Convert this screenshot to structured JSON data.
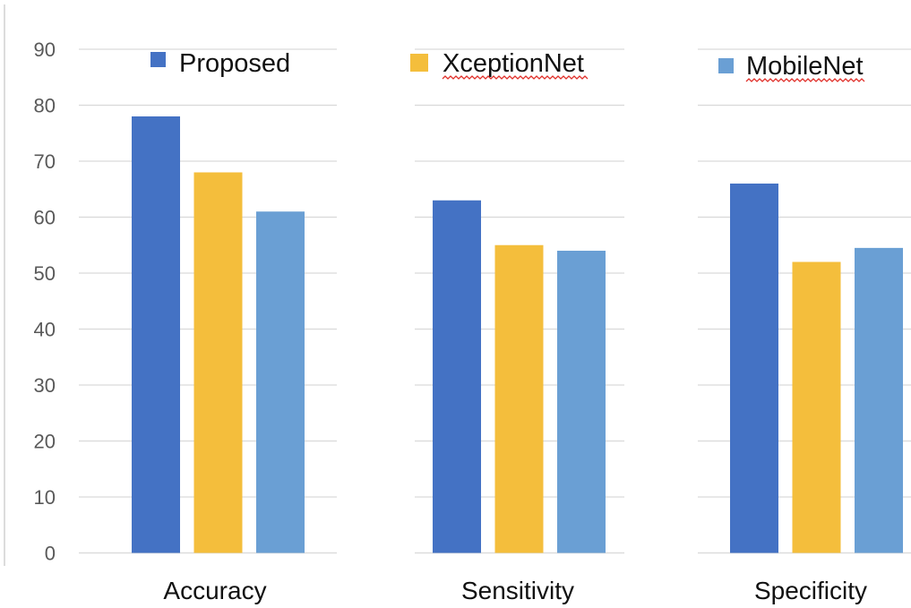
{
  "chart_data": {
    "type": "bar",
    "categories": [
      "Accuracy",
      "Sensitivity",
      "Specificity"
    ],
    "series": [
      {
        "name": "Proposed",
        "color": "#4472C4",
        "values": [
          78,
          63,
          66
        ]
      },
      {
        "name": "XceptionNet",
        "color": "#F4BE3C",
        "values": [
          68,
          55,
          52
        ]
      },
      {
        "name": "MobileNet",
        "color": "#6A9FD4",
        "values": [
          61,
          54,
          54.5
        ]
      }
    ],
    "y_ticks": [
      0,
      10,
      20,
      30,
      40,
      50,
      60,
      70,
      80,
      90
    ],
    "ylim": [
      0,
      90
    ],
    "grid": true,
    "legend_position": "top"
  }
}
